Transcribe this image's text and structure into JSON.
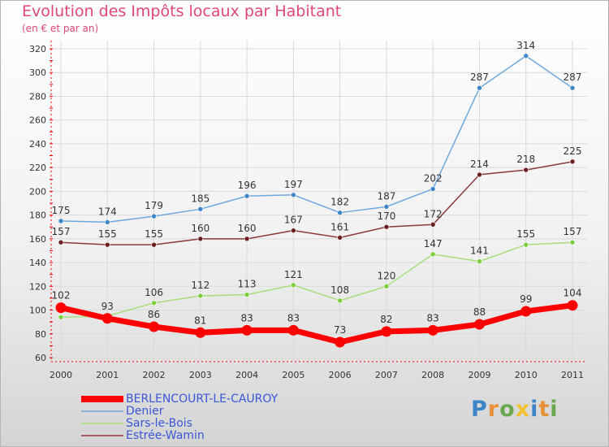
{
  "title": "Evolution des Impôts locaux par Habitant",
  "subtitle": "(en € et par an)",
  "logo_text": "Proxiti",
  "colors": {
    "title": "#e0457b",
    "legend_text": "#3a57d6",
    "grid": "#d9d9d9",
    "axis": "#ee0000"
  },
  "chart_data": {
    "type": "line",
    "title": "Evolution des Impôts locaux par Habitant",
    "subtitle": "(en € et par an)",
    "xlabel": "",
    "ylabel": "",
    "x": [
      "2000",
      "2001",
      "2002",
      "2003",
      "2004",
      "2005",
      "2006",
      "2007",
      "2008",
      "2009",
      "2010",
      "2011"
    ],
    "ylim": [
      60,
      320
    ],
    "yticks": [
      60,
      80,
      100,
      120,
      140,
      160,
      180,
      200,
      220,
      240,
      260,
      280,
      300,
      320
    ],
    "grid": true,
    "legend_position": "bottom-left",
    "series": [
      {
        "name": "BERLENCOURT-LE-CAUROY",
        "color": "#ff0000",
        "marker": "#ff0000",
        "width": "thick",
        "values": [
          102,
          93,
          86,
          81,
          83,
          83,
          73,
          82,
          83,
          88,
          99,
          104
        ]
      },
      {
        "name": "Denier",
        "color": "#6fa8dc",
        "marker": "#3d85c6",
        "width": "thin",
        "values": [
          175,
          174,
          179,
          185,
          196,
          197,
          182,
          187,
          202,
          287,
          314,
          287
        ]
      },
      {
        "name": "Sars-le-Bois",
        "color": "#a9dd7b",
        "marker": "#7ccd3b",
        "width": "thin",
        "values": [
          94,
          95,
          106,
          112,
          113,
          121,
          108,
          120,
          147,
          141,
          155,
          157
        ]
      },
      {
        "name": "Estrée-Wamin",
        "color": "#8b3a3a",
        "marker": "#6b1f1f",
        "width": "thin",
        "values": [
          157,
          155,
          155,
          160,
          160,
          167,
          161,
          170,
          172,
          214,
          218,
          225
        ]
      }
    ],
    "data_labels": {
      "BERLENCOURT-LE-CAUROY": [
        "102",
        "93",
        "86",
        "81",
        "83",
        "83",
        "73",
        "82",
        "83",
        "88",
        "99",
        "104"
      ],
      "Denier": [
        "175",
        "174",
        "179",
        "185",
        "196",
        "197",
        "182",
        "187",
        "202",
        "287",
        "314",
        "287"
      ],
      "Sars-le-Bois": [
        "",
        "",
        "106",
        "112",
        "113",
        "121",
        "108",
        "120",
        "147",
        "141",
        "155",
        "157"
      ],
      "Estrée-Wamin": [
        "157",
        "155",
        "155",
        "160",
        "160",
        "167",
        "161",
        "170",
        "172",
        "214",
        "218",
        "225"
      ]
    }
  }
}
